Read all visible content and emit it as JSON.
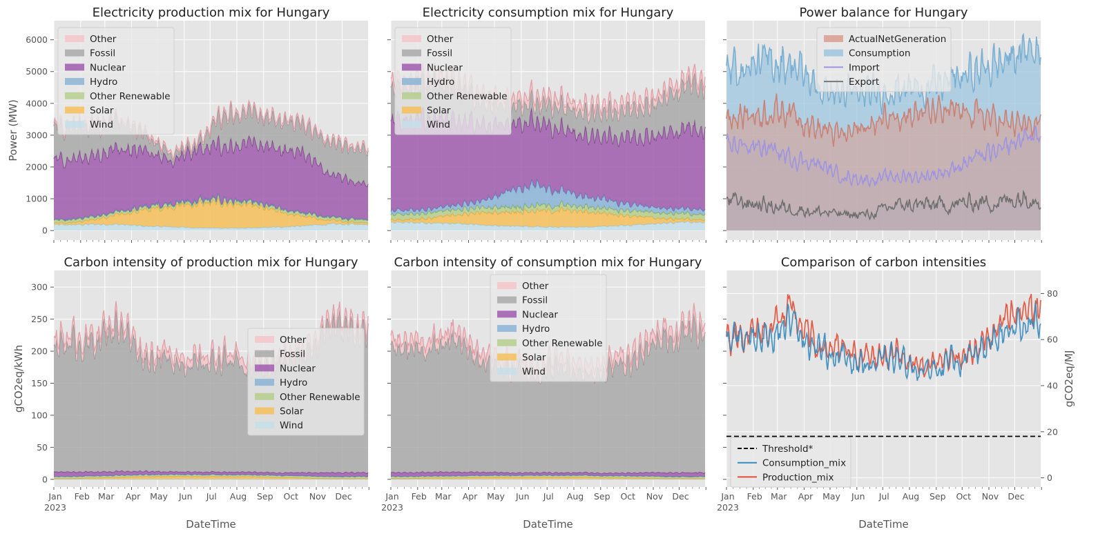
{
  "chart_data": [
    {
      "id": "p1",
      "type": "area",
      "title": "Electricity production mix for Hungary",
      "ylabel": "Power (MW)",
      "xlabel": "",
      "ylim": [
        -300,
        6600
      ],
      "yticks": [
        0,
        1000,
        2000,
        3000,
        4000,
        5000,
        6000
      ],
      "stacked": true,
      "legend_position": "upper left",
      "legend": [
        "Other",
        "Fossil",
        "Nuclear",
        "Hydro",
        "Other Renewable",
        "Solar",
        "Wind"
      ],
      "x_month_starts": [
        "Jan",
        "Feb",
        "Mar",
        "Apr",
        "May",
        "Jun",
        "Jul",
        "Aug",
        "Sep",
        "Oct",
        "Nov",
        "Dec",
        "end"
      ],
      "monthly_means": {
        "Wind": [
          180,
          200,
          200,
          140,
          120,
          90,
          80,
          80,
          110,
          150,
          200,
          200
        ],
        "Solar": [
          60,
          140,
          300,
          500,
          650,
          750,
          800,
          700,
          500,
          300,
          120,
          60
        ],
        "Other Renewable": [
          90,
          90,
          90,
          90,
          90,
          90,
          90,
          90,
          90,
          90,
          90,
          90
        ],
        "Hydro": [
          20,
          20,
          20,
          20,
          20,
          20,
          20,
          20,
          20,
          20,
          20,
          20
        ],
        "Nuclear": [
          1900,
          1900,
          2000,
          1800,
          1300,
          1600,
          1700,
          1800,
          1850,
          1900,
          1400,
          1100
        ],
        "Fossil": [
          1000,
          900,
          900,
          500,
          200,
          150,
          1000,
          900,
          900,
          850,
          1000,
          1050
        ],
        "Other": [
          80,
          80,
          80,
          80,
          80,
          80,
          80,
          80,
          80,
          80,
          80,
          80
        ]
      }
    },
    {
      "id": "p2",
      "type": "area",
      "title": "Electricity consumption mix for Hungary",
      "xlabel": "",
      "ylabel": "",
      "ylim": [
        -300,
        6600
      ],
      "stacked": true,
      "legend_position": "upper left",
      "legend": [
        "Other",
        "Fossil",
        "Nuclear",
        "Hydro",
        "Other Renewable",
        "Solar",
        "Wind"
      ],
      "monthly_means": {
        "Wind": [
          250,
          240,
          220,
          180,
          150,
          120,
          110,
          110,
          150,
          200,
          250,
          260
        ],
        "Solar": [
          80,
          150,
          270,
          380,
          450,
          500,
          520,
          480,
          380,
          250,
          130,
          80
        ],
        "Other Renewable": [
          170,
          170,
          170,
          160,
          160,
          160,
          160,
          160,
          160,
          170,
          170,
          170
        ],
        "Hydro": [
          120,
          120,
          140,
          200,
          500,
          700,
          450,
          330,
          250,
          180,
          150,
          150
        ],
        "Nuclear": [
          2900,
          2800,
          2750,
          2450,
          2100,
          1950,
          1950,
          1900,
          2050,
          2200,
          2350,
          2550
        ],
        "Fossil": [
          1000,
          1050,
          1050,
          700,
          550,
          550,
          700,
          700,
          800,
          900,
          1100,
          1400
        ],
        "Other": [
          250,
          250,
          250,
          250,
          250,
          250,
          250,
          250,
          250,
          250,
          250,
          250
        ]
      }
    },
    {
      "id": "p3",
      "type": "area",
      "title": "Power balance for Hungary",
      "xlabel": "",
      "ylabel": "",
      "ylim": [
        -300,
        6600
      ],
      "legend_position": "upper center",
      "legend": [
        "ActualNetGeneration",
        "Consumption",
        "Import",
        "Export"
      ],
      "monthly_means": {
        "ActualNetGeneration": [
          3600,
          3700,
          3800,
          3200,
          3000,
          3300,
          3700,
          3700,
          3700,
          3700,
          3400,
          3300
        ],
        "Consumption": [
          5100,
          5300,
          5300,
          4500,
          4300,
          4300,
          4500,
          4500,
          4700,
          5000,
          5300,
          5700
        ],
        "Import": [
          2700,
          2600,
          2300,
          2100,
          1700,
          1600,
          1700,
          1700,
          1900,
          2300,
          2500,
          3000
        ],
        "Export": [
          900,
          800,
          700,
          600,
          500,
          500,
          800,
          800,
          800,
          900,
          900,
          1100
        ]
      }
    },
    {
      "id": "p4",
      "type": "area",
      "title": "Carbon intensity of production mix for Hungary",
      "xlabel": "DateTime",
      "ylabel": "gCO2eq/kWh",
      "ylim": [
        -12,
        326
      ],
      "yticks": [
        0,
        50,
        100,
        150,
        200,
        250,
        300
      ],
      "stacked": true,
      "legend_position": "center right",
      "legend": [
        "Other",
        "Fossil",
        "Nuclear",
        "Hydro",
        "Other Renewable",
        "Solar",
        "Wind"
      ],
      "x_tick_labels": [
        "Jan\n2023",
        "Feb",
        "Mar",
        "Apr",
        "May",
        "Jun",
        "Jul",
        "Aug",
        "Sep",
        "Oct",
        "Nov",
        "Dec"
      ],
      "monthly_means": {
        "Wind": [
          0.3,
          0.3,
          0.3,
          0.3,
          0.3,
          0.3,
          0.3,
          0.3,
          0.3,
          0.3,
          0.3,
          0.3
        ],
        "Solar": [
          1,
          2,
          3,
          4,
          4,
          4,
          4,
          4,
          3,
          2,
          1,
          1
        ],
        "Other Renewable": [
          3,
          3,
          3,
          3,
          3,
          3,
          3,
          3,
          3,
          3,
          3,
          3
        ],
        "Hydro": [
          0.2,
          0.2,
          0.2,
          0.2,
          0.2,
          0.2,
          0.2,
          0.2,
          0.2,
          0.2,
          0.2,
          0.2
        ],
        "Nuclear": [
          7,
          6,
          6,
          5,
          4,
          4,
          4,
          4,
          4,
          5,
          6,
          6
        ],
        "Fossil": [
          200,
          200,
          230,
          175,
          175,
          165,
          175,
          160,
          170,
          180,
          230,
          220
        ],
        "Other": [
          12,
          12,
          12,
          12,
          12,
          12,
          12,
          12,
          12,
          12,
          12,
          12
        ]
      }
    },
    {
      "id": "p5",
      "type": "area",
      "title": "Carbon intensity of consumption mix for Hungary",
      "xlabel": "DateTime",
      "ylabel": "",
      "ylim": [
        -12,
        326
      ],
      "stacked": true,
      "legend_position": "upper center",
      "legend": [
        "Other",
        "Fossil",
        "Nuclear",
        "Hydro",
        "Other Renewable",
        "Solar",
        "Wind"
      ],
      "monthly_means": {
        "Wind": [
          0.3,
          0.3,
          0.3,
          0.3,
          0.3,
          0.3,
          0.3,
          0.3,
          0.3,
          0.3,
          0.3,
          0.3
        ],
        "Solar": [
          1,
          2,
          2,
          3,
          3,
          3,
          3,
          3,
          2,
          2,
          1,
          1
        ],
        "Other Renewable": [
          3,
          3,
          3,
          3,
          3,
          3,
          3,
          3,
          3,
          3,
          3,
          3
        ],
        "Hydro": [
          0.2,
          0.2,
          0.2,
          0.2,
          0.2,
          0.2,
          0.2,
          0.2,
          0.2,
          0.2,
          0.2,
          0.2
        ],
        "Nuclear": [
          6,
          6,
          6,
          5,
          4,
          4,
          4,
          4,
          4,
          5,
          6,
          6
        ],
        "Fossil": [
          195,
          190,
          205,
          175,
          160,
          155,
          165,
          155,
          165,
          180,
          210,
          220
        ],
        "Other": [
          15,
          15,
          15,
          15,
          15,
          15,
          15,
          15,
          15,
          15,
          15,
          15
        ]
      }
    },
    {
      "id": "p6",
      "type": "line",
      "title": "Comparison of carbon intensities",
      "xlabel": "DateTime",
      "ylabel": "gCO2eq/MJ",
      "ylim": [
        -4,
        90
      ],
      "yticks": [
        0,
        20,
        40,
        60,
        80
      ],
      "y_axis_side": "right",
      "legend_position": "lower left",
      "legend": [
        "Threshold*",
        "Consumption_mix",
        "Production_mix"
      ],
      "threshold": 18,
      "monthly_means": {
        "Consumption_mix": [
          60,
          62,
          68,
          56,
          52,
          49,
          52,
          46,
          50,
          53,
          62,
          68
        ],
        "Production_mix": [
          62,
          64,
          72,
          57,
          55,
          52,
          55,
          48,
          52,
          55,
          66,
          74
        ]
      }
    }
  ]
}
